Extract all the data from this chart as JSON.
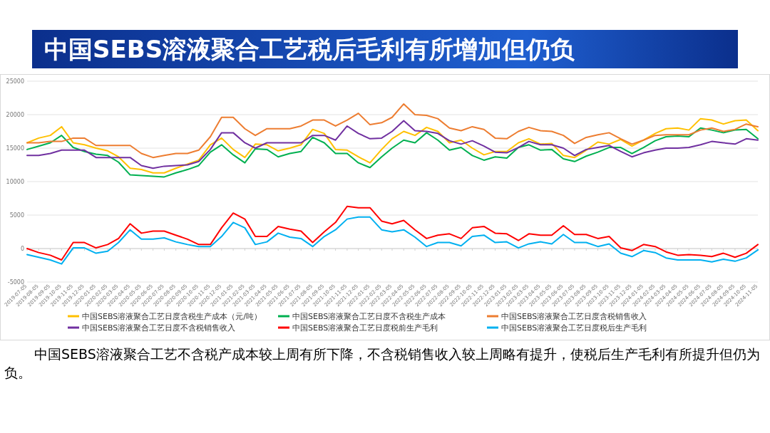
{
  "chart_data": {
    "type": "line",
    "title": "中国SEBS溶液聚合工艺税后毛利有所增加但仍负",
    "annotations": [
      "中国SEBS溶液聚合工艺不含税产成本较上周有所下降，不含税销售收入较上周略有提升，使税后生产毛利有所提升但仍为负。"
    ],
    "x": [
      "2019-07-05",
      "2019-08-05",
      "2019-09-05",
      "2019-10-05",
      "2019-11-05",
      "2019-12-05",
      "2020-01-05",
      "2020-02-05",
      "2020-03-05",
      "2020-04-05",
      "2020-05-05",
      "2020-06-05",
      "2020-07-05",
      "2020-08-05",
      "2020-09-05",
      "2020-10-05",
      "2020-11-05",
      "2020-12-05",
      "2021-01-05",
      "2021-02-05",
      "2021-03-05",
      "2021-04-05",
      "2021-05-05",
      "2021-06-05",
      "2021-07-05",
      "2021-08-05",
      "2021-09-05",
      "2021-10-05",
      "2021-11-05",
      "2021-12-05",
      "2022-01-05",
      "2022-02-05",
      "2022-03-05",
      "2022-04-05",
      "2022-05-05",
      "2022-06-05",
      "2022-07-05",
      "2022-08-05",
      "2022-09-05",
      "2022-10-05",
      "2022-11-05",
      "2022-12-05",
      "2023-01-05",
      "2023-02-05",
      "2023-03-05",
      "2023-04-05",
      "2023-05-05",
      "2023-06-05",
      "2023-07-05",
      "2023-08-05",
      "2023-09-05",
      "2023-10-05",
      "2023-11-05",
      "2023-12-05",
      "2024-01-05",
      "2024-02-05",
      "2024-03-05",
      "2024-04-05",
      "2024-05-05",
      "2024-06-05",
      "2024-07-05",
      "2024-08-05",
      "2024-09-05",
      "2024-10-05",
      "2024-11-05"
    ],
    "xlim": [
      "2019-07-05",
      "2024-11-05"
    ],
    "xticks": [
      "2019-07-05",
      "2019-08-05",
      "2019-09-05",
      "2019-10-05",
      "2019-11-05",
      "2019-12-05",
      "2020-01-05",
      "2020-02-05",
      "2020-03-05",
      "2020-04-05",
      "2020-05-05",
      "2020-06-05",
      "2020-07-05",
      "2020-08-05",
      "2020-09-05",
      "2020-10-05",
      "2020-11-05",
      "2020-12-05",
      "2021-01-05",
      "2021-02-05",
      "2021-03-05",
      "2021-04-05",
      "2021-05-05",
      "2021-06-05",
      "2021-07-05",
      "2021-08-05",
      "2021-09-05",
      "2021-10-05",
      "2021-11-05",
      "2021-12-05",
      "2022-01-05",
      "2022-02-05",
      "2022-03-05",
      "2022-04-05",
      "2022-05-05",
      "2022-06-05",
      "2022-07-05",
      "2022-08-05",
      "2022-09-05",
      "2022-10-05",
      "2022-11-05",
      "2022-12-05",
      "2023-01-05",
      "2023-02-05",
      "2023-03-05",
      "2023-04-05",
      "2023-05-05",
      "2023-06-05",
      "2023-07-05",
      "2023-08-05",
      "2023-09-05",
      "2023-10-05",
      "2023-11-05",
      "2023-12-05",
      "2024-01-05",
      "2024-02-05",
      "2024-03-05",
      "2024-04-05",
      "2024-05-05",
      "2024-06-05",
      "2024-07-05",
      "2024-08-05",
      "2024-09-05",
      "2024-10-05",
      "2024-11-05"
    ],
    "ylim": [
      -5000,
      25000
    ],
    "yticks": [
      -5000,
      0,
      5000,
      10000,
      15000,
      20000,
      25000
    ],
    "grid": "y",
    "legend": "bottom",
    "series": [
      {
        "name": "中国SEBS溶液聚合工艺日度含税生产成本（元/吨）",
        "color": "#ffc000",
        "values": [
          15800,
          16500,
          16900,
          18200,
          15800,
          15500,
          15000,
          14600,
          13700,
          12000,
          11800,
          11300,
          11300,
          12000,
          12600,
          13200,
          15500,
          16500,
          14800,
          13600,
          15600,
          15500,
          14600,
          15000,
          15500,
          17800,
          17200,
          14800,
          14700,
          13700,
          12800,
          14800,
          16400,
          17500,
          16900,
          18100,
          17500,
          15800,
          16200,
          15000,
          14000,
          14500,
          14500,
          15800,
          16400,
          15600,
          15700,
          13900,
          13600,
          14700,
          15900,
          15600,
          16300,
          15300,
          16200,
          17200,
          17900,
          18000,
          17700,
          19400,
          19200,
          18600,
          19100,
          19200,
          17600
        ]
      },
      {
        "name": "中国SEBS溶液聚合工艺日度不含税生产成本",
        "color": "#00b050",
        "values": [
          14800,
          15300,
          15800,
          16900,
          15100,
          14500,
          14100,
          13900,
          12900,
          11000,
          10900,
          10800,
          10700,
          11300,
          11800,
          12400,
          14400,
          15500,
          14000,
          12800,
          14900,
          14800,
          13700,
          14200,
          14500,
          16600,
          15800,
          14200,
          14200,
          12800,
          12100,
          13700,
          15000,
          16200,
          15800,
          17300,
          16200,
          14700,
          15100,
          13900,
          13200,
          13700,
          13500,
          15100,
          15500,
          14700,
          14800,
          13400,
          13000,
          13800,
          14400,
          15100,
          15100,
          14200,
          15100,
          16100,
          16700,
          16800,
          16700,
          18000,
          17700,
          17300,
          17700,
          17800,
          16400
        ]
      },
      {
        "name": "中国SEBS溶液聚合工艺日度含税销售收入",
        "color": "#ed7d31",
        "values": [
          15800,
          15800,
          16000,
          16000,
          16500,
          16500,
          15400,
          15400,
          15400,
          15400,
          14200,
          13600,
          13900,
          14200,
          14200,
          14700,
          16700,
          19600,
          19600,
          17900,
          16900,
          17900,
          17900,
          17900,
          18300,
          19200,
          19200,
          18300,
          19200,
          20200,
          18500,
          18800,
          19600,
          21600,
          20000,
          19900,
          19400,
          18000,
          17600,
          18200,
          17800,
          16500,
          16400,
          17500,
          18100,
          17600,
          17500,
          16900,
          15700,
          16600,
          17000,
          17300,
          16400,
          15600,
          16200,
          16900,
          17000,
          17000,
          17000,
          17700,
          18000,
          17500,
          17800,
          18600,
          18200
        ]
      },
      {
        "name": "中国SEBS溶液聚合工艺日度不含税销售收入",
        "color": "#7030a0",
        "values": [
          13900,
          13900,
          14200,
          14700,
          14700,
          14700,
          13600,
          13600,
          13600,
          13600,
          12400,
          12000,
          12300,
          12400,
          12500,
          13000,
          14800,
          17300,
          17300,
          15800,
          15000,
          15800,
          15800,
          15800,
          15800,
          16900,
          16900,
          16200,
          18300,
          17200,
          16400,
          16500,
          17500,
          19100,
          17600,
          17500,
          17200,
          16100,
          15600,
          16100,
          15300,
          14400,
          14300,
          15100,
          16000,
          15500,
          15500,
          15000,
          13900,
          14800,
          15100,
          15400,
          14500,
          13700,
          14300,
          14700,
          15000,
          15000,
          15100,
          15500,
          16000,
          15800,
          15600,
          16400,
          16200
        ]
      },
      {
        "name": "中国SEBS溶液聚合工艺日度税前生产毛利",
        "color": "#ff0000",
        "values": [
          0,
          -600,
          -1000,
          -1700,
          900,
          900,
          100,
          600,
          1500,
          3700,
          2300,
          2600,
          2600,
          2000,
          1400,
          600,
          600,
          3100,
          5300,
          4400,
          1800,
          1800,
          3300,
          2900,
          2600,
          900,
          2500,
          3900,
          6300,
          6100,
          6100,
          4100,
          3700,
          4200,
          2800,
          1500,
          2000,
          2200,
          1500,
          3100,
          3300,
          2300,
          2200,
          1200,
          2200,
          2000,
          2000,
          3400,
          2100,
          2100,
          1500,
          1800,
          100,
          -300,
          600,
          300,
          -500,
          -1000,
          -900,
          -1000,
          -1200,
          -700,
          -1300,
          -700,
          600
        ]
      },
      {
        "name": "中国SEBS溶液聚合工艺日度税后生产毛利",
        "color": "#00b0f0",
        "values": [
          -900,
          -1300,
          -1700,
          -2300,
          100,
          100,
          -700,
          -400,
          900,
          2800,
          1400,
          1400,
          1600,
          1000,
          600,
          300,
          300,
          1800,
          3900,
          3100,
          600,
          1000,
          2300,
          1700,
          1500,
          300,
          1800,
          2800,
          4400,
          4700,
          4700,
          2800,
          2500,
          2800,
          1700,
          300,
          900,
          900,
          400,
          1800,
          2000,
          900,
          1000,
          100,
          700,
          1000,
          700,
          2100,
          900,
          900,
          300,
          700,
          -700,
          -1200,
          -300,
          -600,
          -1400,
          -1700,
          -1700,
          -1700,
          -2000,
          -1600,
          -1900,
          -1400,
          -200
        ]
      }
    ]
  }
}
